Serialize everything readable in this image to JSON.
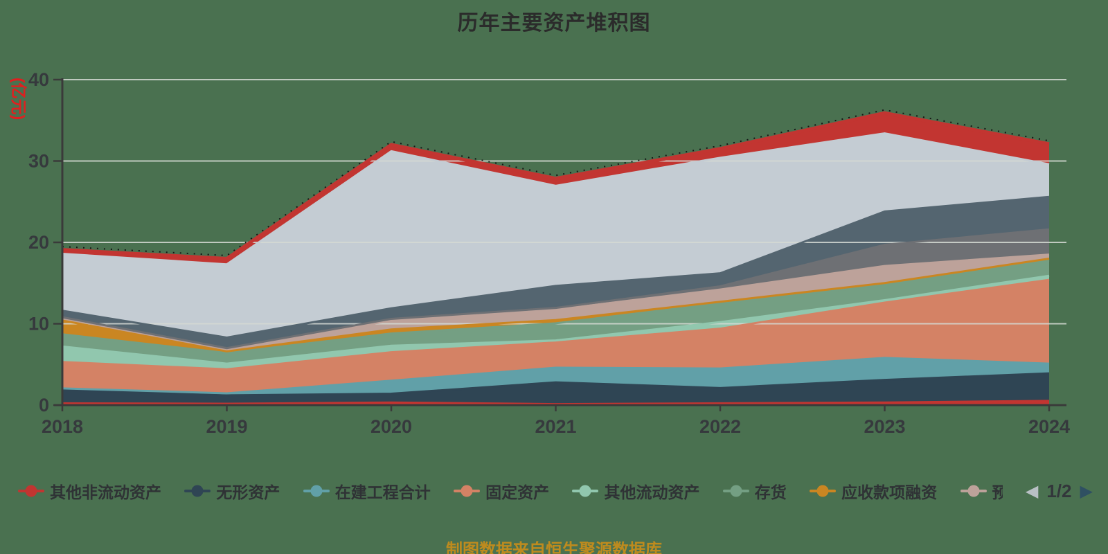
{
  "title": "历年主要资产堆积图",
  "y_axis": {
    "unit": "(亿元)",
    "ticks": [
      0,
      10,
      20,
      30,
      40
    ],
    "max": 40
  },
  "x_axis": {
    "labels": [
      "2018",
      "2019",
      "2020",
      "2021",
      "2022",
      "2023",
      "2024"
    ]
  },
  "legend": {
    "items": [
      {
        "label": "其他非流动资产",
        "color": "#c23531",
        "truncated": false
      },
      {
        "label": "无形资产",
        "color": "#2f4554",
        "truncated": false
      },
      {
        "label": "在建工程合计",
        "color": "#61a0a8",
        "truncated": false
      },
      {
        "label": "固定资产",
        "color": "#d48265",
        "truncated": false
      },
      {
        "label": "其他流动资产",
        "color": "#91c7ae",
        "truncated": false
      },
      {
        "label": "存货",
        "color": "#749f83",
        "truncated": false
      },
      {
        "label": "应收款项融资",
        "color": "#ca8622",
        "truncated": false
      },
      {
        "label": "预",
        "color": "#bda29a",
        "truncated": true
      }
    ],
    "pager": {
      "prev_icon": "◀",
      "page": "1/2",
      "next_icon": "▶"
    }
  },
  "footer": {
    "text": "制图数据来自恒生聚源数据库"
  },
  "colors": {
    "background": "#4a7150",
    "grid_line": "#d5dad4",
    "axis": "#3a3a3a",
    "axis_label": "#36393d",
    "title": "#2b2b2b",
    "unit_label": "#e01f1f",
    "footer": "#be8b1e",
    "top_dotted_line": "#151515"
  },
  "chart_data": {
    "type": "area",
    "stacked": true,
    "title": "历年主要资产堆积图",
    "ylabel": "(亿元)",
    "xlabel": "",
    "x": [
      2018,
      2019,
      2020,
      2021,
      2022,
      2023,
      2024
    ],
    "ylim": [
      0,
      40
    ],
    "y_ticks": [
      0,
      10,
      20,
      30,
      40
    ],
    "grid": true,
    "legend_position": "bottom",
    "series": [
      {
        "name": "其他非流动资产",
        "color": "#c23531",
        "values": [
          0.2,
          0.15,
          0.3,
          0.1,
          0.2,
          0.3,
          0.5
        ]
      },
      {
        "name": "无形资产",
        "color": "#2f4554",
        "values": [
          1.7,
          1.05,
          1.1,
          2.7,
          1.9,
          2.8,
          3.4
        ]
      },
      {
        "name": "在建工程合计",
        "color": "#61a0a8",
        "values": [
          0.15,
          0.25,
          1.6,
          1.8,
          2.4,
          2.7,
          1.2
        ]
      },
      {
        "name": "固定资产",
        "color": "#d48265",
        "values": [
          3.25,
          2.95,
          3.5,
          3.1,
          4.9,
          6.8,
          10.3
        ]
      },
      {
        "name": "其他流动资产",
        "color": "#91c7ae",
        "values": [
          1.9,
          0.7,
          0.8,
          0.25,
          0.8,
          0.3,
          0.5
        ]
      },
      {
        "name": "存货",
        "color": "#749f83",
        "values": [
          1.5,
          1.3,
          1.5,
          2.1,
          2.3,
          1.9,
          1.9
        ]
      },
      {
        "name": "应收款项融资",
        "color": "#ca8622",
        "values": [
          1.7,
          0.2,
          0.5,
          0.4,
          0.2,
          0.2,
          0.2
        ]
      },
      {
        "name": "预",
        "color": "#bda29a",
        "values": [
          0.3,
          0.3,
          1.1,
          1.3,
          1.5,
          2.1,
          0.5
        ]
      },
      {
        "name": "",
        "color": "#6e7074",
        "values": [
          0.1,
          0.1,
          0.2,
          0.2,
          0.4,
          2.6,
          3.1
        ]
      },
      {
        "name": "",
        "color": "#546570",
        "values": [
          0.8,
          1.3,
          1.3,
          2.7,
          1.6,
          4.1,
          4.0
        ]
      },
      {
        "name": "",
        "color": "#c4ccd3",
        "values": [
          7.0,
          9.0,
          19.3,
          12.3,
          14.2,
          9.6,
          4.0
        ]
      },
      {
        "name": "",
        "color": "#c23531",
        "values": [
          0.5,
          0.7,
          0.8,
          0.9,
          1.1,
          2.5,
          2.5
        ]
      }
    ]
  }
}
